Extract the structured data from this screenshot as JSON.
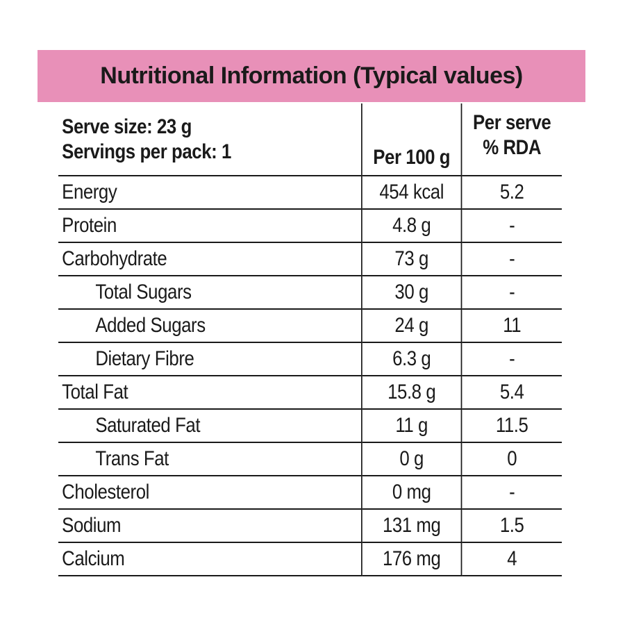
{
  "title": "Nutritional Information (Typical values)",
  "colors": {
    "title_background": "#e890b8",
    "text": "#1a1a1a",
    "rule": "#1a1a1a"
  },
  "header": {
    "serve_size": "Serve size: 23 g",
    "servings_per_pack": "Servings per pack: 1",
    "per_100g": "Per 100 g",
    "per_serve_line1": "Per serve",
    "per_serve_line2": "% RDA"
  },
  "rows": [
    {
      "label": "Energy",
      "per100": "454 kcal",
      "rda": "5.2",
      "indent": false
    },
    {
      "label": "Protein",
      "per100": "4.8 g",
      "rda": "-",
      "indent": false
    },
    {
      "label": "Carbohydrate",
      "per100": "73 g",
      "rda": "-",
      "indent": false
    },
    {
      "label": "Total Sugars",
      "per100": "30 g",
      "rda": "-",
      "indent": true
    },
    {
      "label": "Added Sugars",
      "per100": "24 g",
      "rda": "11",
      "indent": true
    },
    {
      "label": "Dietary Fibre",
      "per100": "6.3 g",
      "rda": "-",
      "indent": true
    },
    {
      "label": "Total Fat",
      "per100": "15.8 g",
      "rda": "5.4",
      "indent": false
    },
    {
      "label": "Saturated Fat",
      "per100": "11 g",
      "rda": "11.5",
      "indent": true
    },
    {
      "label": "Trans Fat",
      "per100": "0 g",
      "rda": "0",
      "indent": true
    },
    {
      "label": "Cholesterol",
      "per100": "0 mg",
      "rda": "-",
      "indent": false
    },
    {
      "label": "Sodium",
      "per100": "131 mg",
      "rda": "1.5",
      "indent": false
    },
    {
      "label": "Calcium",
      "per100": "176 mg",
      "rda": "4",
      "indent": false
    }
  ]
}
